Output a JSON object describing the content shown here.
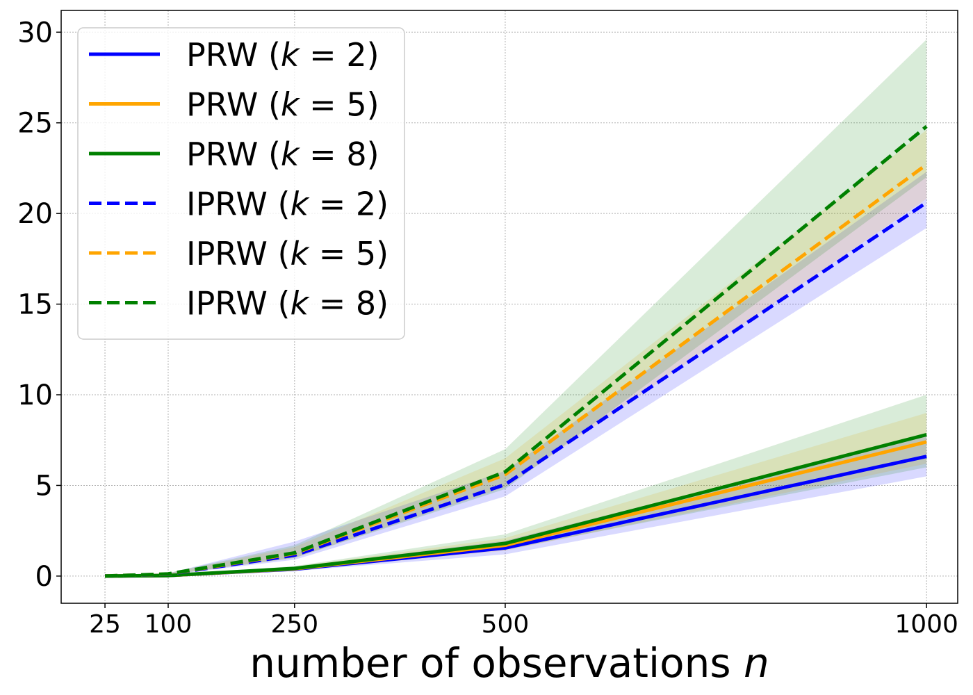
{
  "chart_data": {
    "type": "line",
    "title": "",
    "xlabel": "number of observations",
    "xlabel_var": "n",
    "ylabel": "",
    "x": [
      25,
      100,
      250,
      500,
      1000
    ],
    "xticks": [
      25,
      100,
      250,
      500,
      1000
    ],
    "yticks": [
      0,
      5,
      10,
      15,
      20,
      25,
      30
    ],
    "xlim": [
      -27,
      1037
    ],
    "ylim": [
      -1.5,
      31.2
    ],
    "grid": true,
    "legend_position": "top-left",
    "series": [
      {
        "name": "PRW",
        "k": "2",
        "color": "#0000ff",
        "style": "solid",
        "values": [
          0.0,
          0.03,
          0.38,
          1.55,
          6.6
        ],
        "lower": [
          0.0,
          0.02,
          0.28,
          1.2,
          5.5
        ],
        "upper": [
          0.0,
          0.05,
          0.5,
          1.95,
          7.8
        ]
      },
      {
        "name": "PRW",
        "k": "5",
        "color": "#ffa500",
        "style": "solid",
        "values": [
          0.0,
          0.03,
          0.4,
          1.7,
          7.4
        ],
        "lower": [
          0.0,
          0.02,
          0.3,
          1.4,
          6.2
        ],
        "upper": [
          0.0,
          0.05,
          0.52,
          2.1,
          9.0
        ]
      },
      {
        "name": "PRW",
        "k": "8",
        "color": "#008000",
        "style": "solid",
        "values": [
          0.0,
          0.03,
          0.42,
          1.8,
          7.8
        ],
        "lower": [
          0.0,
          0.02,
          0.3,
          1.45,
          6.0
        ],
        "upper": [
          0.0,
          0.05,
          0.55,
          2.3,
          10.0
        ]
      },
      {
        "name": "IPRW",
        "k": "2",
        "color": "#0000ff",
        "style": "dashed",
        "values": [
          0.0,
          0.1,
          1.15,
          5.05,
          20.6
        ],
        "lower": [
          0.0,
          0.06,
          0.9,
          4.4,
          19.2
        ],
        "upper": [
          0.0,
          0.15,
          1.9,
          5.8,
          22.3
        ]
      },
      {
        "name": "IPRW",
        "k": "5",
        "color": "#ffa500",
        "style": "dashed",
        "values": [
          0.0,
          0.11,
          1.25,
          5.6,
          22.7
        ],
        "lower": [
          0.0,
          0.07,
          1.0,
          4.9,
          20.8
        ],
        "upper": [
          0.0,
          0.16,
          1.6,
          6.5,
          24.6
        ]
      },
      {
        "name": "IPRW",
        "k": "8",
        "color": "#008000",
        "style": "dashed",
        "values": [
          0.0,
          0.12,
          1.28,
          5.75,
          24.8
        ],
        "lower": [
          0.0,
          0.07,
          1.0,
          4.8,
          22.0
        ],
        "upper": [
          0.0,
          0.17,
          1.7,
          7.0,
          29.6
        ]
      }
    ]
  }
}
